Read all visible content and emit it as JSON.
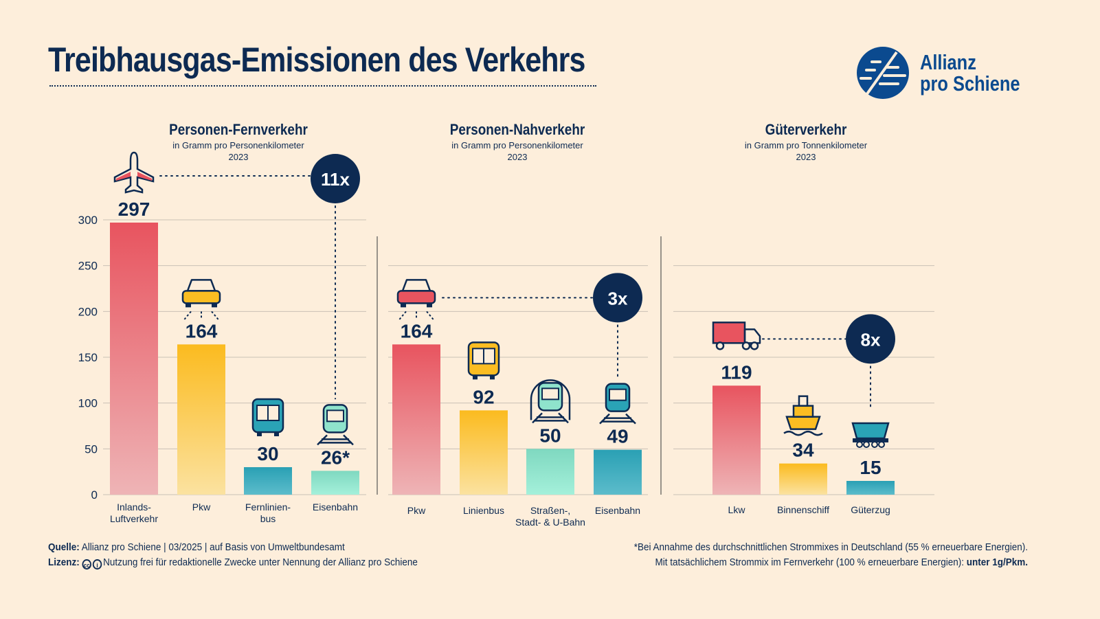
{
  "header": {
    "title": "Treibhausgas-Emissionen des Verkehrs"
  },
  "logo": {
    "line1": "Allianz",
    "line2": "pro Schiene",
    "color": "#0b4a8f"
  },
  "colors": {
    "navy": "#0d2a52",
    "background": "#fdeedb",
    "red": "#e8545f",
    "yellow": "#fbbd22",
    "teal": "#2aa3b6",
    "mint": "#8fe3cc"
  },
  "chart_data": [
    {
      "type": "bar",
      "title": "Personen-Fernverkehr",
      "subtitle": "in Gramm pro Personenkilometer",
      "year": "2023",
      "ylim": [
        0,
        300
      ],
      "yticks": [
        0,
        50,
        100,
        150,
        200,
        250,
        300
      ],
      "grid": true,
      "categories": [
        "Inlands-\nLuftverkehr",
        "Pkw",
        "Fernlinien-\nbus",
        "Eisenbahn"
      ],
      "values": [
        297,
        164,
        30,
        26
      ],
      "value_labels": [
        "297",
        "164",
        "30",
        "26*"
      ],
      "icons": [
        "plane-icon",
        "car-icon",
        "bus-icon",
        "train-icon"
      ],
      "bar_colors": [
        "red",
        "yellow",
        "teal",
        "mint"
      ],
      "comparison": {
        "label": "11x",
        "from": 0,
        "to": 3
      }
    },
    {
      "type": "bar",
      "title": "Personen-Nahverkehr",
      "subtitle": "in Gramm pro Personenkilometer",
      "year": "2023",
      "ylim": [
        0,
        250
      ],
      "grid": true,
      "categories": [
        "Pkw",
        "Linienbus",
        "Straßen-,\nStadt- & U-Bahn",
        "Eisenbahn"
      ],
      "values": [
        164,
        92,
        50,
        49
      ],
      "value_labels": [
        "164",
        "92",
        "50",
        "49"
      ],
      "icons": [
        "car-icon",
        "bus-icon",
        "tram-icon",
        "train-icon"
      ],
      "bar_colors": [
        "red",
        "yellow",
        "mint",
        "teal"
      ],
      "comparison": {
        "label": "3x",
        "from": 0,
        "to": 3
      }
    },
    {
      "type": "bar",
      "title": "Güterverkehr",
      "subtitle": "in Gramm pro Tonnenkilometer",
      "year": "2023",
      "ylim": [
        0,
        250
      ],
      "grid": true,
      "categories": [
        "Lkw",
        "Binnenschiff",
        "Güterzug"
      ],
      "values": [
        119,
        34,
        15
      ],
      "value_labels": [
        "119",
        "34",
        "15"
      ],
      "icons": [
        "truck-icon",
        "ship-icon",
        "freight-wagon-icon"
      ],
      "bar_colors": [
        "red",
        "yellow",
        "teal"
      ],
      "comparison": {
        "label": "8x",
        "from": 0,
        "to": 2
      }
    }
  ],
  "footer": {
    "source_label": "Quelle:",
    "source_text": "Allianz pro Schiene | 03/2025 | auf Basis von Umweltbundesamt",
    "license_label": "Lizenz:",
    "license_text": "Nutzung frei für redaktionelle Zwecke unter Nennung der Allianz pro Schiene",
    "note_line1": "*Bei Annahme des durchschnittlichen Strommixes in Deutschland (55 % erneuerbare Energien).",
    "note_line2": "Mit tatsächlichem Strommix im Fernverkehr (100 % erneuerbare Energien):",
    "note_line2_bold": "unter 1g/Pkm."
  }
}
